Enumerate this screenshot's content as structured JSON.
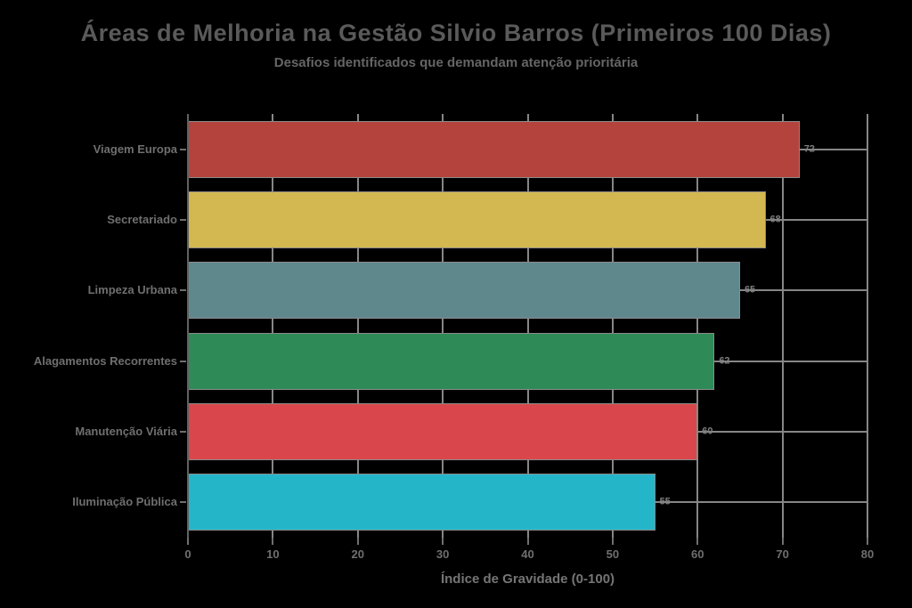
{
  "chart_data": {
    "type": "bar",
    "orientation": "horizontal",
    "title": "Áreas de Melhoria na Gestão Silvio Barros (Primeiros 100 Dias)",
    "subtitle": "Desafios identificados que demandam atenção prioritária",
    "xlabel": "Índice de Gravidade (0-100)",
    "categories": [
      "Viagem Europa",
      "Secretariado",
      "Limpeza Urbana",
      "Alagamentos Recorrentes",
      "Manutenção Viária",
      "Iluminação Pública"
    ],
    "values": [
      72,
      68,
      65,
      62,
      60,
      55
    ],
    "bar_colors": [
      "#b4433e",
      "#d3b750",
      "#5f888d",
      "#2e8b57",
      "#d9464b",
      "#25b5c9"
    ],
    "value_labels_shown": true,
    "xlim": [
      0,
      80
    ],
    "xticks": [
      0,
      10,
      20,
      30,
      40,
      50,
      60,
      70,
      80
    ],
    "grid": "both",
    "legend_position": "none",
    "colors": {
      "background": "#000000",
      "gridline": "#868686",
      "spine": "#616161",
      "bar_edge": "#8b8b8b",
      "title_text": "#5a5a5a",
      "subtitle_text": "#656565",
      "label_text": "#6f6f6f",
      "value_text": "#7e7e7e"
    }
  }
}
